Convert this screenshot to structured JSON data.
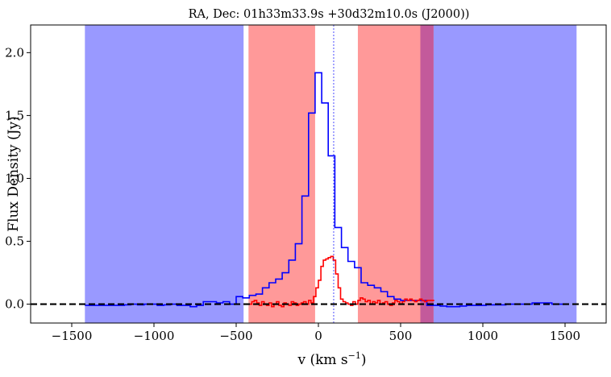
{
  "chart_data": {
    "type": "line",
    "title": "RA, Dec: 01h33m33.9s +30d32m10.0s (J2000))",
    "xlabel_main": "v (km s",
    "xlabel_sup": "−1",
    "xlabel_close": ")",
    "ylabel": "Flux Density (Jy)",
    "xlim": [
      -1750,
      1750
    ],
    "ylim": [
      -0.15,
      2.22
    ],
    "xticks": [
      -1500,
      -1000,
      -500,
      0,
      500,
      1000,
      1500
    ],
    "xtick_labels": [
      "−1500",
      "−1000",
      "−500",
      "0",
      "500",
      "1000",
      "1500"
    ],
    "yticks": [
      0.0,
      0.5,
      1.0,
      1.5,
      2.0
    ],
    "ytick_labels": [
      "0.0",
      "0.5",
      "1.0",
      "1.5",
      "2.0"
    ],
    "grid": false,
    "blue_bands": [
      [
        -1420,
        -455
      ],
      [
        620,
        1570
      ]
    ],
    "red_bands": [
      [
        -425,
        -20
      ],
      [
        240,
        700
      ]
    ],
    "blue_band_color": "#9999ff",
    "red_band_color": "#ff9999",
    "overlap_band_color": "#c35a9b",
    "center_velocity": 93,
    "zero_line": 0,
    "series": [
      {
        "color": "#0000ff",
        "edges": [
          -1420,
          -1380,
          -1340,
          -1300,
          -1260,
          -1220,
          -1180,
          -1140,
          -1100,
          -1060,
          -1020,
          -980,
          -940,
          -900,
          -860,
          -820,
          -780,
          -740,
          -700,
          -660,
          -620,
          -580,
          -540,
          -500,
          -460,
          -420,
          -380,
          -340,
          -300,
          -260,
          -220,
          -180,
          -140,
          -100,
          -60,
          -20,
          20,
          60,
          100,
          140,
          180,
          220,
          260,
          300,
          340,
          380,
          420,
          460,
          500,
          540,
          580,
          620,
          660,
          700,
          740,
          780,
          820,
          860,
          900,
          940,
          980,
          1020,
          1060,
          1100,
          1140,
          1180,
          1220,
          1260,
          1300,
          1340,
          1380,
          1420,
          1460,
          1500
        ],
        "values": [
          -0.01,
          -0.01,
          -0.01,
          -0.01,
          -0.01,
          -0.01,
          -0.005,
          0.0,
          -0.005,
          0.0,
          0.0,
          -0.01,
          -0.005,
          0.0,
          -0.01,
          -0.01,
          -0.02,
          -0.01,
          0.02,
          0.02,
          0.01,
          0.02,
          0.0,
          0.06,
          0.05,
          0.07,
          0.08,
          0.13,
          0.17,
          0.2,
          0.25,
          0.35,
          0.48,
          0.86,
          1.52,
          1.84,
          1.6,
          1.18,
          0.61,
          0.45,
          0.34,
          0.29,
          0.17,
          0.15,
          0.13,
          0.1,
          0.06,
          0.04,
          0.03,
          0.03,
          0.03,
          0.03,
          -0.01,
          -0.01,
          -0.015,
          -0.02,
          -0.02,
          -0.015,
          -0.01,
          -0.01,
          -0.01,
          -0.005,
          -0.005,
          -0.005,
          0.0,
          0.0,
          0.0,
          0.0,
          0.01,
          0.01,
          0.01,
          0.0,
          0.0
        ]
      },
      {
        "color": "#ff0000",
        "edges": [
          -420,
          -405,
          -390,
          -375,
          -360,
          -345,
          -330,
          -315,
          -300,
          -285,
          -270,
          -255,
          -240,
          -225,
          -210,
          -195,
          -180,
          -165,
          -150,
          -135,
          -120,
          -105,
          -90,
          -75,
          -60,
          -45,
          -30,
          -15,
          0,
          15,
          30,
          45,
          60,
          75,
          90,
          105,
          120,
          135,
          150,
          165,
          180,
          195,
          210,
          225,
          240,
          255,
          270,
          285,
          300,
          315,
          330,
          345,
          360,
          375,
          390,
          405,
          420,
          435,
          450,
          465,
          480,
          495,
          510,
          525,
          540,
          555,
          570,
          585,
          600,
          615,
          630,
          645,
          660,
          675,
          690,
          705
        ],
        "values": [
          0.0,
          0.02,
          0.03,
          0.01,
          -0.01,
          0.02,
          0.0,
          -0.01,
          0.01,
          -0.02,
          0.0,
          0.02,
          -0.01,
          -0.02,
          0.01,
          0.0,
          -0.01,
          0.02,
          0.01,
          -0.01,
          0.0,
          0.01,
          0.02,
          0.0,
          0.03,
          0.01,
          0.06,
          0.13,
          0.19,
          0.3,
          0.35,
          0.36,
          0.37,
          0.38,
          0.35,
          0.24,
          0.13,
          0.04,
          0.02,
          0.01,
          0.0,
          -0.01,
          0.02,
          0.0,
          0.03,
          0.05,
          0.04,
          0.02,
          0.03,
          0.0,
          0.02,
          0.01,
          0.03,
          0.0,
          0.01,
          0.02,
          0.0,
          -0.01,
          0.01,
          0.03,
          0.02,
          0.0,
          0.02,
          0.04,
          0.03,
          0.04,
          0.03,
          0.02,
          0.03,
          0.04,
          0.03,
          0.02,
          0.03,
          0.03,
          0.03
        ]
      }
    ]
  }
}
